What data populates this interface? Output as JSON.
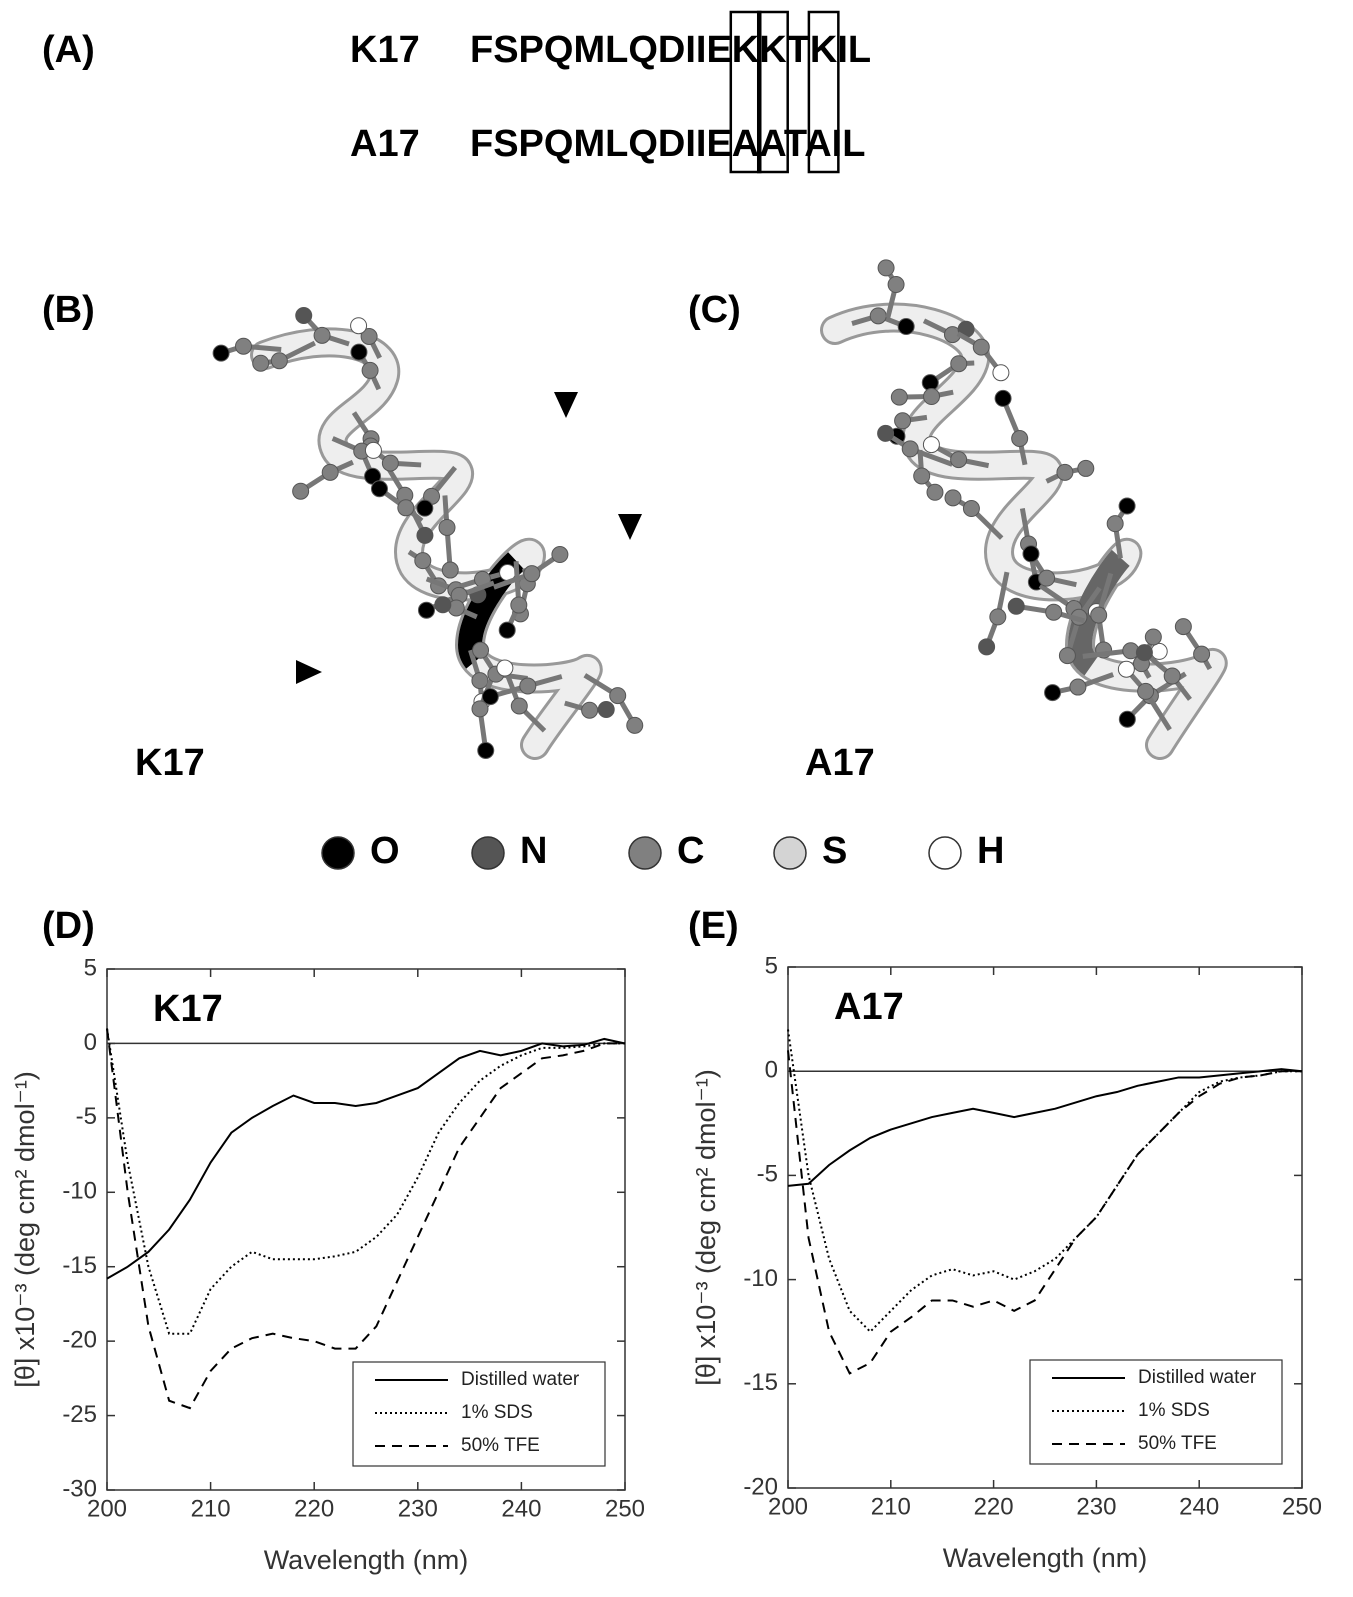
{
  "panel_a": {
    "label": "(A)",
    "sequences": [
      {
        "name": "K17",
        "sequence": "FSPQMLQDIIEKKTKIL"
      },
      {
        "name": "A17",
        "sequence": "FSPQMLQDIIEAATAIL"
      }
    ],
    "highlighted_residues": [
      12,
      13,
      15
    ]
  },
  "structures": [
    {
      "label": "(B)",
      "name": "K17",
      "highlight_color": "#000000"
    },
    {
      "label": "(C)",
      "name": "A17",
      "highlight_color": "#666666"
    }
  ],
  "atom_legend": [
    {
      "symbol": "O",
      "color": "#000000"
    },
    {
      "symbol": "N",
      "color": "#555555"
    },
    {
      "symbol": "C",
      "color": "#808080"
    },
    {
      "symbol": "S",
      "color": "#d4d4d4"
    },
    {
      "symbol": "H",
      "color": "#ffffff"
    }
  ],
  "chart_data": [
    {
      "type": "line",
      "panel": "(D)",
      "label": "K17",
      "x_label": "Wavelength (nm)",
      "y_label": "[θ] x10⁻³ (deg cm² dmol⁻¹)",
      "x": [
        200,
        202,
        204,
        206,
        208,
        210,
        212,
        214,
        216,
        218,
        220,
        222,
        224,
        226,
        228,
        230,
        232,
        234,
        236,
        238,
        240,
        242,
        244,
        246,
        248,
        250
      ],
      "xlim": [
        200,
        250
      ],
      "xticks": [
        200,
        210,
        220,
        230,
        240,
        250
      ],
      "ylim": [
        -30,
        5
      ],
      "yticks": [
        5,
        0,
        -5,
        -10,
        -15,
        -20,
        -25,
        -30
      ],
      "hline": 0,
      "legend": "lower right",
      "series": [
        {
          "name": "Distilled water",
          "color": "#000000",
          "dash": "solid",
          "values": [
            -15.8,
            -15,
            -14,
            -12.5,
            -10.5,
            -8,
            -6,
            -5,
            -4.2,
            -3.5,
            -4,
            -4,
            -4.2,
            -4,
            -3.5,
            -3,
            -2,
            -1,
            -0.5,
            -0.8,
            -0.5,
            0,
            -0.2,
            -0.1,
            0.3,
            0
          ]
        },
        {
          "name": "1% SDS",
          "color": "#000000",
          "dash": "dotted",
          "values": [
            1,
            -8,
            -15,
            -19.5,
            -19.5,
            -16.5,
            -15,
            -14,
            -14.5,
            -14.5,
            -14.5,
            -14.3,
            -14,
            -13,
            -11.5,
            -9,
            -6,
            -4,
            -2.5,
            -1.5,
            -0.8,
            -0.3,
            -0.3,
            -0.2,
            0,
            0
          ]
        },
        {
          "name": "50% TFE",
          "color": "#000000",
          "dash": "dashed",
          "values": [
            1,
            -10,
            -19,
            -24,
            -24.5,
            -22,
            -20.5,
            -19.8,
            -19.5,
            -19.8,
            -20,
            -20.5,
            -20.5,
            -19,
            -16,
            -13,
            -10,
            -7,
            -5,
            -3,
            -2,
            -1,
            -0.8,
            -0.5,
            0,
            0
          ]
        }
      ]
    },
    {
      "type": "line",
      "panel": "(E)",
      "label": "A17",
      "x_label": "Wavelength (nm)",
      "y_label": "[θ] x10⁻³ (deg cm² dmol⁻¹)",
      "x": [
        200,
        202,
        204,
        206,
        208,
        210,
        212,
        214,
        216,
        218,
        220,
        222,
        224,
        226,
        228,
        230,
        232,
        234,
        236,
        238,
        240,
        242,
        244,
        246,
        248,
        250
      ],
      "xlim": [
        200,
        250
      ],
      "xticks": [
        200,
        210,
        220,
        230,
        240,
        250
      ],
      "ylim": [
        -20,
        5
      ],
      "yticks": [
        5,
        0,
        -5,
        -10,
        -15,
        -20
      ],
      "hline": 0,
      "legend": "lower right",
      "series": [
        {
          "name": "Distilled water",
          "color": "#000000",
          "dash": "solid",
          "values": [
            -5.5,
            -5.4,
            -4.5,
            -3.8,
            -3.2,
            -2.8,
            -2.5,
            -2.2,
            -2,
            -1.8,
            -2,
            -2.2,
            -2,
            -1.8,
            -1.5,
            -1.2,
            -1,
            -0.7,
            -0.5,
            -0.3,
            -0.3,
            -0.2,
            -0.1,
            0,
            0.1,
            0
          ]
        },
        {
          "name": "1% SDS",
          "color": "#000000",
          "dash": "dotted",
          "values": [
            2,
            -5,
            -9,
            -11.5,
            -12.5,
            -11.5,
            -10.5,
            -9.8,
            -9.5,
            -9.8,
            -9.6,
            -10,
            -9.6,
            -9,
            -8,
            -7,
            -5.5,
            -4,
            -3,
            -2,
            -1,
            -0.5,
            -0.3,
            -0.2,
            0,
            0
          ]
        },
        {
          "name": "50% TFE",
          "color": "#000000",
          "dash": "dashed",
          "values": [
            1,
            -8,
            -12.5,
            -14.5,
            -14,
            -12.5,
            -11.8,
            -11,
            -11,
            -11.3,
            -11,
            -11.5,
            -11,
            -9.5,
            -8,
            -7,
            -5.5,
            -4,
            -3,
            -2,
            -1.2,
            -0.6,
            -0.3,
            -0.2,
            0,
            0
          ]
        }
      ]
    }
  ]
}
